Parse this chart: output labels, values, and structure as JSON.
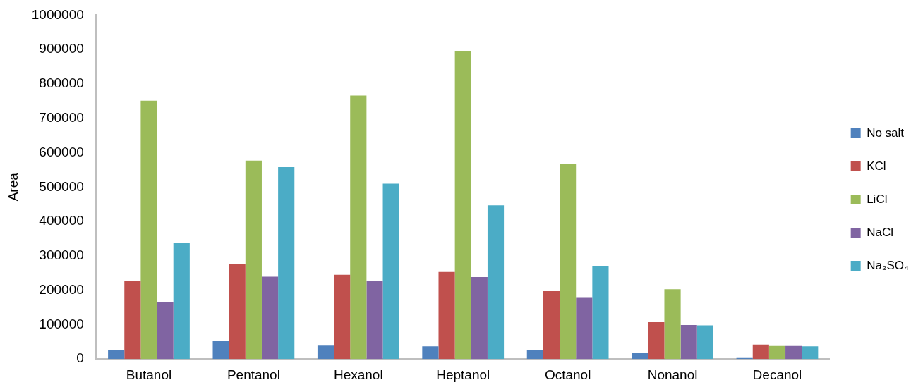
{
  "chart_data": {
    "type": "bar",
    "ylabel": "Area",
    "categories": [
      "Butanol",
      "Pentanol",
      "Hexanol",
      "Heptanol",
      "Octanol",
      "Nonanol",
      "Decanol"
    ],
    "series": [
      {
        "name": "No salt",
        "color": "#4f81bd",
        "values": [
          27000,
          53000,
          39000,
          37000,
          27000,
          17000,
          3000
        ]
      },
      {
        "name": "KCl",
        "color": "#c0504d",
        "values": [
          227000,
          276000,
          245000,
          253000,
          197000,
          107000,
          42000
        ]
      },
      {
        "name": "LiCl",
        "color": "#9bbb59",
        "values": [
          751000,
          577000,
          766000,
          895000,
          568000,
          203000,
          38000
        ]
      },
      {
        "name": "NaCl",
        "color": "#8064a2",
        "values": [
          166000,
          239000,
          227000,
          238000,
          180000,
          99000,
          38000
        ]
      },
      {
        "name": "Na₂SO₄",
        "color": "#4bacc6",
        "values": [
          338000,
          558000,
          510000,
          447000,
          271000,
          98000,
          37000
        ]
      }
    ],
    "ylim": [
      0,
      1000000
    ],
    "yticks": [
      0,
      100000,
      200000,
      300000,
      400000,
      500000,
      600000,
      700000,
      800000,
      900000,
      1000000
    ],
    "grid": false,
    "legend": "right"
  }
}
